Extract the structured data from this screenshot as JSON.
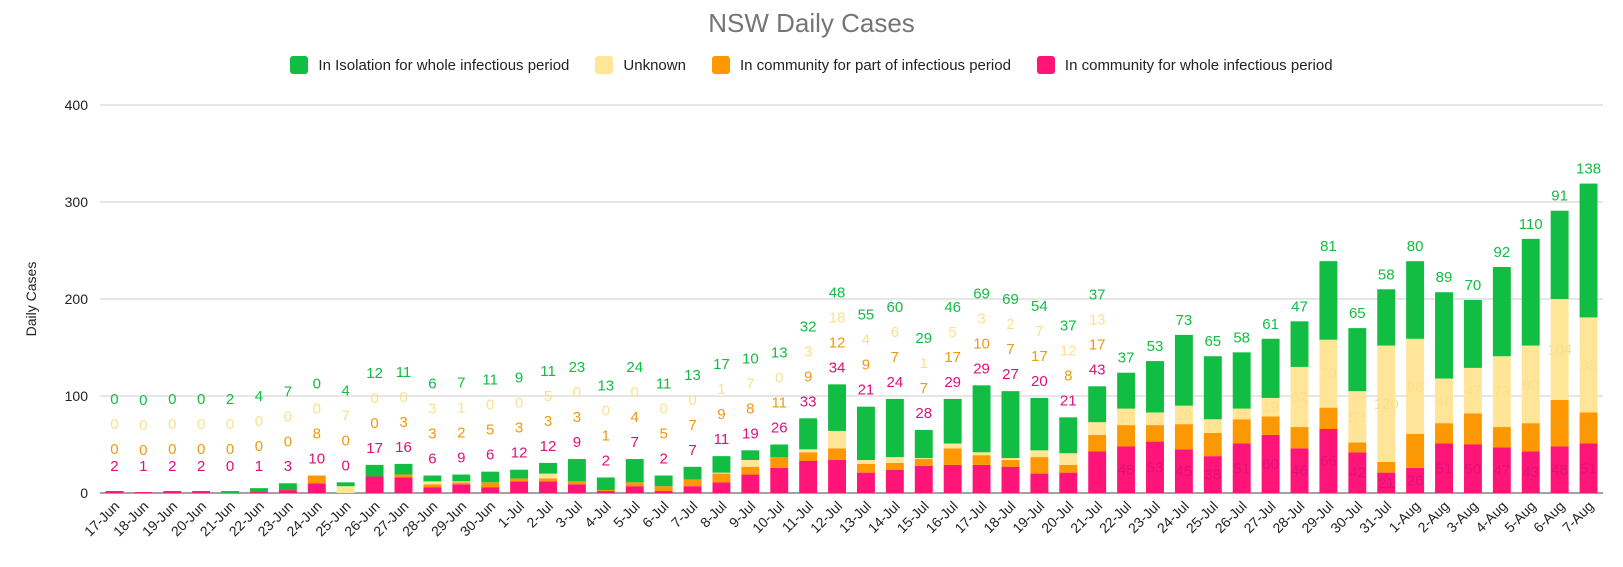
{
  "chart_data": {
    "type": "bar",
    "stacked": true,
    "title": "NSW Daily Cases",
    "ylabel": "Daily Cases",
    "xlabel": "",
    "ylim": [
      0,
      400
    ],
    "yticks": [
      0,
      100,
      200,
      300,
      400
    ],
    "grid": true,
    "legend_position": "top",
    "categories": [
      "17-Jun",
      "18-Jun",
      "19-Jun",
      "20-Jun",
      "21-Jun",
      "22-Jun",
      "23-Jun",
      "24-Jun",
      "25-Jun",
      "26-Jun",
      "27-Jun",
      "28-Jun",
      "29-Jun",
      "30-Jun",
      "1-Jul",
      "2-Jul",
      "3-Jul",
      "4-Jul",
      "5-Jul",
      "6-Jul",
      "7-Jul",
      "8-Jul",
      "9-Jul",
      "10-Jul",
      "11-Jul",
      "12-Jul",
      "13-Jul",
      "14-Jul",
      "15-Jul",
      "16-Jul",
      "17-Jul",
      "18-Jul",
      "19-Jul",
      "20-Jul",
      "21-Jul",
      "22-Jul",
      "23-Jul",
      "24-Jul",
      "25-Jul",
      "26-Jul",
      "27-Jul",
      "28-Jul",
      "29-Jul",
      "30-Jul",
      "31-Jul",
      "1-Aug",
      "2-Aug",
      "3-Aug",
      "4-Aug",
      "5-Aug",
      "6-Aug",
      "7-Aug"
    ],
    "series": [
      {
        "name": "In community for whole infectious period",
        "color": "#ff1577",
        "values": [
          2,
          1,
          2,
          2,
          0,
          1,
          3,
          10,
          0,
          17,
          16,
          6,
          9,
          6,
          12,
          12,
          9,
          2,
          7,
          2,
          7,
          11,
          19,
          26,
          33,
          34,
          21,
          24,
          28,
          29,
          29,
          27,
          20,
          21,
          43,
          48,
          53,
          45,
          38,
          51,
          60,
          46,
          66,
          42,
          21,
          26,
          51,
          50,
          47,
          43,
          48,
          51
        ]
      },
      {
        "name": "In community for part of infectious period",
        "color": "#ff9800",
        "values": [
          0,
          0,
          0,
          0,
          0,
          0,
          0,
          8,
          0,
          0,
          3,
          3,
          2,
          5,
          3,
          3,
          3,
          1,
          4,
          5,
          7,
          9,
          8,
          11,
          9,
          12,
          9,
          7,
          7,
          17,
          10,
          7,
          17,
          8,
          17,
          22,
          17,
          26,
          24,
          25,
          19,
          22,
          22,
          10,
          11,
          35,
          21,
          32,
          21,
          29,
          48,
          32
        ]
      },
      {
        "name": "Unknown",
        "color": "#ffe598",
        "values": [
          0,
          0,
          0,
          0,
          0,
          0,
          0,
          0,
          7,
          0,
          0,
          3,
          1,
          0,
          0,
          5,
          0,
          0,
          0,
          0,
          0,
          1,
          7,
          0,
          3,
          18,
          4,
          6,
          1,
          5,
          3,
          2,
          7,
          12,
          13,
          17,
          13,
          19,
          14,
          11,
          19,
          62,
          70,
          53,
          120,
          98,
          46,
          47,
          73,
          80,
          104,
          98
        ]
      },
      {
        "name": "In Isolation for whole infectious period",
        "color": "#12bd43",
        "values": [
          0,
          0,
          0,
          0,
          2,
          4,
          7,
          0,
          4,
          12,
          11,
          6,
          7,
          11,
          9,
          11,
          23,
          13,
          24,
          11,
          13,
          17,
          10,
          13,
          32,
          48,
          55,
          60,
          29,
          46,
          69,
          69,
          54,
          37,
          37,
          37,
          53,
          73,
          65,
          58,
          61,
          47,
          81,
          65,
          58,
          80,
          89,
          70,
          92,
          110,
          91,
          138
        ]
      }
    ]
  }
}
